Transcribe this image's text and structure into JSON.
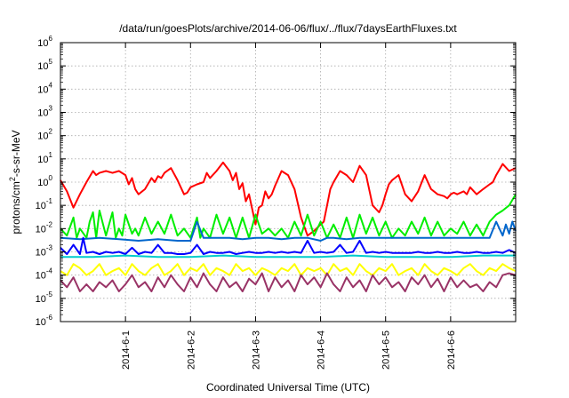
{
  "chart_data": {
    "type": "line",
    "title": "/data/run/goesPlots/archive/2014-06-06/flux/../flux/7daysEarthFluxes.txt",
    "xlabel": "Coordinated Universal Time (UTC)",
    "ylabel_parts": {
      "before": "protons/cm",
      "sup": "2",
      "after": "-s-sr-MeV"
    },
    "yscale": "log",
    "ylim": [
      1e-06,
      1000000.0
    ],
    "xlim": [
      0,
      7
    ],
    "grid": true,
    "y_ticks": [
      {
        "exp": -6,
        "label": "10",
        "sup": "-6"
      },
      {
        "exp": -5,
        "label": "10",
        "sup": "-5"
      },
      {
        "exp": -4,
        "label": "10",
        "sup": "-4"
      },
      {
        "exp": -3,
        "label": "10",
        "sup": "-3"
      },
      {
        "exp": -2,
        "label": "10",
        "sup": "-2"
      },
      {
        "exp": -1,
        "label": "10",
        "sup": "-1"
      },
      {
        "exp": 0,
        "label": "10",
        "sup": "0"
      },
      {
        "exp": 1,
        "label": "10",
        "sup": "1"
      },
      {
        "exp": 2,
        "label": "10",
        "sup": "2"
      },
      {
        "exp": 3,
        "label": "10",
        "sup": "3"
      },
      {
        "exp": 4,
        "label": "10",
        "sup": "4"
      },
      {
        "exp": 5,
        "label": "10",
        "sup": "5"
      },
      {
        "exp": 6,
        "label": "10",
        "sup": "6"
      }
    ],
    "x_ticks": [
      {
        "pos": 1,
        "label": "2014-6-1"
      },
      {
        "pos": 2,
        "label": "2014-6-2"
      },
      {
        "pos": 3,
        "label": "2014-6-3"
      },
      {
        "pos": 4,
        "label": "2014-6-4"
      },
      {
        "pos": 5,
        "label": "2014-6-5"
      },
      {
        "pos": 6,
        "label": "2014-6-6"
      }
    ],
    "series": [
      {
        "color": "#ff0000",
        "x": [
          0,
          0.1,
          0.2,
          0.3,
          0.4,
          0.5,
          0.55,
          0.6,
          0.7,
          0.8,
          0.9,
          1.0,
          1.05,
          1.1,
          1.15,
          1.2,
          1.3,
          1.4,
          1.45,
          1.5,
          1.55,
          1.6,
          1.7,
          1.8,
          1.9,
          1.95,
          2.0,
          2.1,
          2.2,
          2.25,
          2.3,
          2.4,
          2.5,
          2.6,
          2.65,
          2.7,
          2.75,
          2.8,
          2.85,
          2.9,
          3.0,
          3.05,
          3.1,
          3.15,
          3.2,
          3.25,
          3.3,
          3.4,
          3.5,
          3.6,
          3.7,
          3.8,
          3.9,
          4.0,
          4.05,
          4.1,
          4.15,
          4.2,
          4.3,
          4.4,
          4.5,
          4.6,
          4.7,
          4.8,
          4.9,
          4.95,
          5.0,
          5.05,
          5.1,
          5.2,
          5.3,
          5.4,
          5.5,
          5.6,
          5.7,
          5.8,
          5.9,
          5.95,
          6.0,
          6.05,
          6.1,
          6.2,
          6.25,
          6.3,
          6.4,
          6.5,
          6.6,
          6.65,
          6.7,
          6.8,
          6.9,
          7.0
        ],
        "y": [
          1.2,
          0.4,
          0.08,
          0.3,
          1.0,
          3.0,
          2.0,
          2.5,
          3.0,
          2.5,
          3.0,
          2.0,
          0.8,
          1.5,
          0.5,
          0.3,
          0.5,
          1.5,
          1.0,
          1.8,
          1.5,
          2.5,
          4.0,
          1.2,
          0.3,
          0.35,
          0.6,
          0.8,
          1.0,
          2.5,
          1.5,
          3.0,
          7.0,
          3.0,
          1.2,
          2.5,
          0.5,
          0.9,
          0.15,
          0.3,
          0.015,
          0.08,
          0.1,
          0.4,
          0.2,
          0.3,
          0.7,
          3.0,
          2.0,
          0.5,
          0.03,
          0.005,
          0.008,
          0.015,
          0.02,
          0.1,
          0.5,
          1.0,
          3.0,
          2.0,
          1.0,
          5.0,
          2.0,
          0.1,
          0.05,
          0.1,
          0.3,
          0.8,
          1.2,
          2.0,
          0.3,
          0.15,
          0.4,
          2.0,
          0.5,
          0.3,
          0.25,
          0.2,
          0.3,
          0.35,
          0.3,
          0.4,
          0.3,
          0.6,
          0.3,
          0.5,
          0.8,
          1.0,
          2.0,
          6.0,
          3.0,
          4.0
        ]
      },
      {
        "color": "#00ee00",
        "x": [
          0,
          0.1,
          0.2,
          0.25,
          0.3,
          0.4,
          0.45,
          0.5,
          0.55,
          0.6,
          0.7,
          0.8,
          0.85,
          0.9,
          0.95,
          1.0,
          1.1,
          1.15,
          1.2,
          1.3,
          1.4,
          1.5,
          1.6,
          1.7,
          1.8,
          1.9,
          2.0,
          2.1,
          2.15,
          2.2,
          2.3,
          2.4,
          2.5,
          2.6,
          2.7,
          2.8,
          2.9,
          3.0,
          3.1,
          3.2,
          3.3,
          3.4,
          3.5,
          3.6,
          3.7,
          3.8,
          3.9,
          4.0,
          4.1,
          4.2,
          4.3,
          4.4,
          4.5,
          4.6,
          4.7,
          4.8,
          4.9,
          5.0,
          5.1,
          5.2,
          5.3,
          5.4,
          5.5,
          5.6,
          5.7,
          5.8,
          5.9,
          6.0,
          6.1,
          6.2,
          6.3,
          6.4,
          6.5,
          6.6,
          6.7,
          6.8,
          6.9,
          7.0
        ],
        "y": [
          0.01,
          0.005,
          0.03,
          0.004,
          0.01,
          0.004,
          0.02,
          0.05,
          0.004,
          0.06,
          0.005,
          0.05,
          0.004,
          0.01,
          0.005,
          0.04,
          0.006,
          0.01,
          0.005,
          0.03,
          0.006,
          0.02,
          0.006,
          0.04,
          0.005,
          0.01,
          0.004,
          0.03,
          0.004,
          0.01,
          0.004,
          0.04,
          0.006,
          0.03,
          0.004,
          0.03,
          0.004,
          0.04,
          0.006,
          0.01,
          0.005,
          0.01,
          0.004,
          0.02,
          0.005,
          0.04,
          0.005,
          0.02,
          0.004,
          0.015,
          0.004,
          0.03,
          0.004,
          0.04,
          0.006,
          0.03,
          0.005,
          0.02,
          0.004,
          0.01,
          0.005,
          0.02,
          0.006,
          0.03,
          0.005,
          0.02,
          0.005,
          0.01,
          0.006,
          0.02,
          0.005,
          0.015,
          0.005,
          0.02,
          0.04,
          0.06,
          0.1,
          0.3
        ]
      },
      {
        "color": "#0066cc",
        "x": [
          0,
          0.3,
          0.6,
          0.9,
          1.2,
          1.5,
          1.8,
          2.0,
          2.1,
          2.2,
          2.4,
          2.6,
          2.8,
          3.0,
          3.2,
          3.4,
          3.6,
          3.8,
          4.0,
          4.1,
          4.2,
          4.4,
          4.6,
          4.8,
          5.0,
          5.2,
          5.4,
          5.6,
          5.8,
          6.0,
          6.2,
          6.4,
          6.6,
          6.7,
          6.8,
          6.85,
          6.9,
          6.95,
          7.0
        ],
        "y": [
          0.004,
          0.0035,
          0.004,
          0.0035,
          0.003,
          0.0035,
          0.003,
          0.003,
          0.02,
          0.004,
          0.004,
          0.004,
          0.0035,
          0.004,
          0.004,
          0.0035,
          0.004,
          0.004,
          0.003,
          0.004,
          0.004,
          0.0035,
          0.004,
          0.004,
          0.004,
          0.004,
          0.004,
          0.004,
          0.004,
          0.004,
          0.004,
          0.004,
          0.004,
          0.02,
          0.005,
          0.015,
          0.006,
          0.02,
          0.008
        ]
      },
      {
        "color": "#0000ff",
        "x": [
          0,
          0.1,
          0.2,
          0.3,
          0.35,
          0.4,
          0.5,
          0.6,
          0.7,
          0.8,
          0.9,
          1.0,
          1.1,
          1.2,
          1.3,
          1.4,
          1.5,
          1.6,
          1.7,
          1.8,
          1.9,
          2.0,
          2.1,
          2.2,
          2.3,
          2.4,
          2.5,
          2.6,
          2.7,
          2.8,
          2.9,
          3.0,
          3.1,
          3.2,
          3.3,
          3.4,
          3.5,
          3.6,
          3.7,
          3.8,
          3.9,
          4.0,
          4.1,
          4.2,
          4.3,
          4.4,
          4.5,
          4.6,
          4.7,
          4.8,
          4.9,
          5.0,
          5.1,
          5.2,
          5.3,
          5.4,
          5.5,
          5.6,
          5.7,
          5.8,
          5.9,
          6.0,
          6.1,
          6.2,
          6.3,
          6.4,
          6.5,
          6.6,
          6.7,
          6.8,
          6.9,
          7.0
        ],
        "y": [
          0.0015,
          0.0008,
          0.002,
          0.0008,
          0.004,
          0.0009,
          0.001,
          0.0008,
          0.001,
          0.0009,
          0.001,
          0.0008,
          0.0015,
          0.0008,
          0.001,
          0.0009,
          0.002,
          0.0009,
          0.0009,
          0.0008,
          0.0008,
          0.0009,
          0.002,
          0.0008,
          0.001,
          0.0009,
          0.0009,
          0.001,
          0.0008,
          0.0009,
          0.001,
          0.0009,
          0.0009,
          0.001,
          0.0009,
          0.001,
          0.0009,
          0.001,
          0.0009,
          0.003,
          0.0009,
          0.001,
          0.0009,
          0.001,
          0.002,
          0.0009,
          0.001,
          0.003,
          0.0009,
          0.001,
          0.0009,
          0.001,
          0.0009,
          0.0009,
          0.0009,
          0.0009,
          0.001,
          0.0009,
          0.0009,
          0.001,
          0.0009,
          0.0009,
          0.001,
          0.0009,
          0.0009,
          0.001,
          0.0009,
          0.0009,
          0.001,
          0.0009,
          0.0012,
          0.0009
        ]
      },
      {
        "color": "#00cccc",
        "x": [
          0,
          0.5,
          1.0,
          1.5,
          2.0,
          2.5,
          3.0,
          3.5,
          4.0,
          4.5,
          5.0,
          5.5,
          6.0,
          6.5,
          7.0
        ],
        "y": [
          0.0006,
          0.0006,
          0.0007,
          0.0006,
          0.0006,
          0.0007,
          0.0006,
          0.0006,
          0.0006,
          0.0007,
          0.0006,
          0.0006,
          0.0006,
          0.0007,
          0.0007
        ]
      },
      {
        "color": "#ffff00",
        "x": [
          0,
          0.1,
          0.2,
          0.3,
          0.4,
          0.5,
          0.6,
          0.7,
          0.8,
          0.9,
          1.0,
          1.1,
          1.2,
          1.3,
          1.4,
          1.5,
          1.6,
          1.7,
          1.8,
          1.9,
          2.0,
          2.1,
          2.2,
          2.3,
          2.4,
          2.5,
          2.6,
          2.7,
          2.8,
          2.9,
          3.0,
          3.1,
          3.2,
          3.3,
          3.4,
          3.5,
          3.6,
          3.7,
          3.8,
          3.9,
          4.0,
          4.1,
          4.2,
          4.3,
          4.4,
          4.5,
          4.6,
          4.7,
          4.8,
          4.9,
          5.0,
          5.1,
          5.2,
          5.3,
          5.4,
          5.5,
          5.6,
          5.7,
          5.8,
          5.9,
          6.0,
          6.1,
          6.2,
          6.3,
          6.4,
          6.5,
          6.6,
          6.7,
          6.8,
          6.9,
          7.0
        ],
        "y": [
          0.00015,
          0.0001,
          0.0003,
          0.0002,
          0.0001,
          0.00015,
          0.0003,
          0.0001,
          0.00015,
          0.0002,
          0.0001,
          0.0003,
          0.00015,
          0.0001,
          0.0002,
          0.0003,
          0.0001,
          0.00015,
          0.0003,
          0.0001,
          0.0002,
          0.00015,
          0.0003,
          0.0001,
          0.0002,
          0.00015,
          0.0001,
          0.0003,
          0.00015,
          0.0002,
          0.0001,
          0.0002,
          0.00015,
          0.0001,
          0.0002,
          0.00015,
          0.0003,
          0.0001,
          0.0002,
          0.00015,
          0.0002,
          0.0001,
          0.0003,
          0.00015,
          0.0002,
          0.0001,
          0.0003,
          0.00015,
          0.0001,
          0.0002,
          0.00015,
          0.0003,
          0.0001,
          0.00015,
          0.0002,
          0.0001,
          0.0003,
          0.00015,
          0.0001,
          0.0002,
          0.00015,
          0.0001,
          0.0002,
          0.0003,
          0.00015,
          0.0001,
          0.0002,
          0.00015,
          0.0003,
          0.0002,
          0.00015
        ]
      },
      {
        "color": "#993366",
        "x": [
          0,
          0.1,
          0.2,
          0.3,
          0.4,
          0.5,
          0.6,
          0.7,
          0.8,
          0.9,
          1.0,
          1.1,
          1.2,
          1.3,
          1.4,
          1.5,
          1.6,
          1.7,
          1.8,
          1.9,
          2.0,
          2.1,
          2.2,
          2.3,
          2.4,
          2.5,
          2.6,
          2.7,
          2.8,
          2.9,
          3.0,
          3.1,
          3.2,
          3.3,
          3.4,
          3.5,
          3.6,
          3.7,
          3.8,
          3.9,
          4.0,
          4.1,
          4.2,
          4.3,
          4.4,
          4.5,
          4.6,
          4.7,
          4.8,
          4.9,
          5.0,
          5.1,
          5.2,
          5.3,
          5.4,
          5.5,
          5.6,
          5.7,
          5.8,
          5.9,
          6.0,
          6.1,
          6.2,
          6.3,
          6.4,
          6.5,
          6.6,
          6.7,
          6.8,
          6.9,
          7.0
        ],
        "y": [
          6e-05,
          3e-05,
          8e-05,
          2e-05,
          4e-05,
          2e-05,
          5e-05,
          3e-05,
          6e-05,
          2e-05,
          4e-05,
          0.0001,
          3e-05,
          5e-05,
          2e-05,
          8e-05,
          3e-05,
          0.0001,
          4e-05,
          2e-05,
          8e-05,
          3e-05,
          0.00012,
          4e-05,
          2e-05,
          8e-05,
          3e-05,
          5e-05,
          2e-05,
          7e-05,
          4e-05,
          0.00012,
          2e-05,
          8e-05,
          3e-05,
          6e-05,
          2e-05,
          0.0001,
          4e-05,
          8e-05,
          3e-05,
          0.00012,
          4e-05,
          2e-05,
          8e-05,
          3e-05,
          6e-05,
          2e-05,
          0.0001,
          4e-05,
          8e-05,
          3e-05,
          5e-05,
          2e-05,
          8e-05,
          4e-05,
          0.0001,
          3e-05,
          7e-05,
          2e-05,
          8e-05,
          3e-05,
          6e-05,
          3e-05,
          4e-05,
          2e-05,
          5e-05,
          3e-05,
          0.0001,
          0.00012,
          0.0001
        ]
      }
    ]
  }
}
